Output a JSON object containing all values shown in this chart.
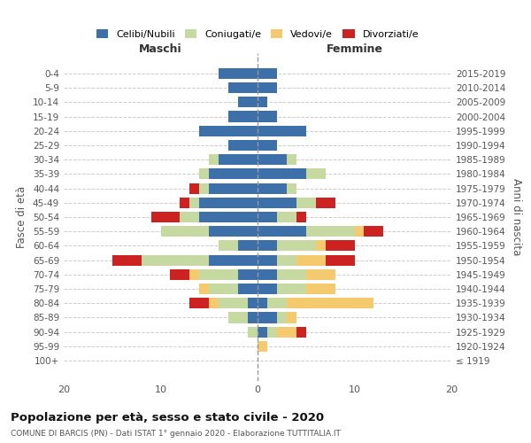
{
  "age_groups": [
    "100+",
    "95-99",
    "90-94",
    "85-89",
    "80-84",
    "75-79",
    "70-74",
    "65-69",
    "60-64",
    "55-59",
    "50-54",
    "45-49",
    "40-44",
    "35-39",
    "30-34",
    "25-29",
    "20-24",
    "15-19",
    "10-14",
    "5-9",
    "0-4"
  ],
  "birth_years": [
    "≤ 1919",
    "1920-1924",
    "1925-1929",
    "1930-1934",
    "1935-1939",
    "1940-1944",
    "1945-1949",
    "1950-1954",
    "1955-1959",
    "1960-1964",
    "1965-1969",
    "1970-1974",
    "1975-1979",
    "1980-1984",
    "1985-1989",
    "1990-1994",
    "1995-1999",
    "2000-2004",
    "2005-2009",
    "2010-2014",
    "2015-2019"
  ],
  "colors": {
    "celibi": "#3d6fa8",
    "coniugati": "#c5d9a0",
    "vedovi": "#f5c96e",
    "divorziati": "#cc2222"
  },
  "maschi": {
    "celibi": [
      0,
      0,
      0,
      1,
      1,
      2,
      2,
      5,
      2,
      5,
      6,
      6,
      5,
      5,
      4,
      3,
      6,
      3,
      2,
      3,
      4
    ],
    "coniugati": [
      0,
      0,
      1,
      2,
      3,
      3,
      4,
      7,
      2,
      5,
      2,
      1,
      1,
      1,
      1,
      0,
      0,
      0,
      0,
      0,
      0
    ],
    "vedovi": [
      0,
      0,
      0,
      0,
      1,
      1,
      1,
      0,
      0,
      0,
      0,
      0,
      0,
      0,
      0,
      0,
      0,
      0,
      0,
      0,
      0
    ],
    "divorziati": [
      0,
      0,
      0,
      0,
      2,
      0,
      2,
      3,
      0,
      0,
      3,
      1,
      1,
      0,
      0,
      0,
      0,
      0,
      0,
      0,
      0
    ]
  },
  "femmine": {
    "celibi": [
      0,
      0,
      1,
      2,
      1,
      2,
      2,
      2,
      2,
      5,
      2,
      4,
      3,
      5,
      3,
      2,
      5,
      2,
      1,
      2,
      2
    ],
    "coniugati": [
      0,
      0,
      1,
      1,
      2,
      3,
      3,
      2,
      4,
      5,
      2,
      2,
      1,
      2,
      1,
      0,
      0,
      0,
      0,
      0,
      0
    ],
    "vedovi": [
      0,
      1,
      2,
      1,
      9,
      3,
      3,
      3,
      1,
      1,
      0,
      0,
      0,
      0,
      0,
      0,
      0,
      0,
      0,
      0,
      0
    ],
    "divorziati": [
      0,
      0,
      1,
      0,
      0,
      0,
      0,
      3,
      3,
      2,
      1,
      2,
      0,
      0,
      0,
      0,
      0,
      0,
      0,
      0,
      0
    ]
  },
  "title": "Popolazione per età, sesso e stato civile - 2020",
  "subtitle": "COMUNE DI BARCIS (PN) - Dati ISTAT 1° gennaio 2020 - Elaborazione TUTTITALIA.IT",
  "xlabel_left": "Maschi",
  "xlabel_right": "Femmine",
  "ylabel_left": "Fasce di età",
  "ylabel_right": "Anni di nascita",
  "xlim": 20,
  "legend_labels": [
    "Celibi/Nubili",
    "Coniugati/e",
    "Vedovi/e",
    "Divorziati/e"
  ]
}
